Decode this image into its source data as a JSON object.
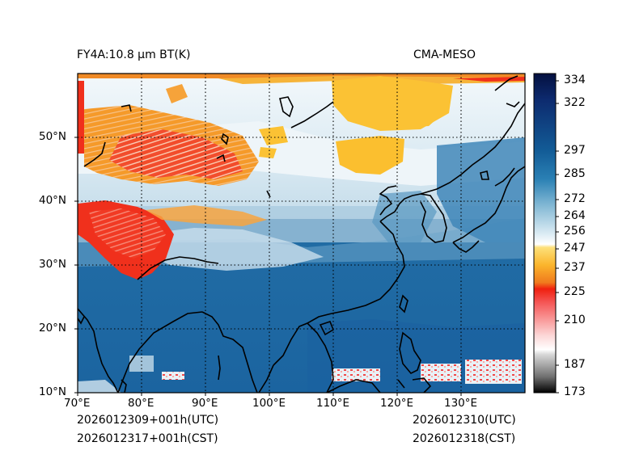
{
  "title_left": "FY4A:10.8 µm BT(K)",
  "title_right": "CMA-MESO",
  "init_utc": "2026012309+001h(UTC)",
  "init_cst": "2026012317+001h(CST)",
  "valid_utc": "2026012310(UTC)",
  "valid_cst": "2026012318(CST)",
  "map": {
    "lon_range": [
      70,
      140
    ],
    "lat_range": [
      10,
      60
    ],
    "lon_ticks": [
      "70°E",
      "80°E",
      "90°E",
      "100°E",
      "110°E",
      "120°E",
      "130°E"
    ],
    "lat_ticks": [
      "10°N",
      "20°N",
      "30°N",
      "40°N",
      "50°N"
    ],
    "gridlines": "dotted"
  },
  "colorbar": {
    "ticks": [
      "334",
      "322",
      "297",
      "285",
      "272",
      "264",
      "256",
      "247",
      "237",
      "225",
      "210",
      "187",
      "173"
    ],
    "tick_values": [
      334,
      322,
      297,
      285,
      272,
      264,
      256,
      247,
      237,
      225,
      210,
      187,
      173
    ],
    "range": [
      173,
      338
    ],
    "colors": {
      "navy": "#05164f",
      "blue": "#1f6aa8",
      "light_blue": "#d6e8f2",
      "yellow": "#fdc63a",
      "orange": "#f07a1e",
      "red": "#f01b10",
      "pink": "#fbd1d1",
      "black": "#000000"
    }
  }
}
